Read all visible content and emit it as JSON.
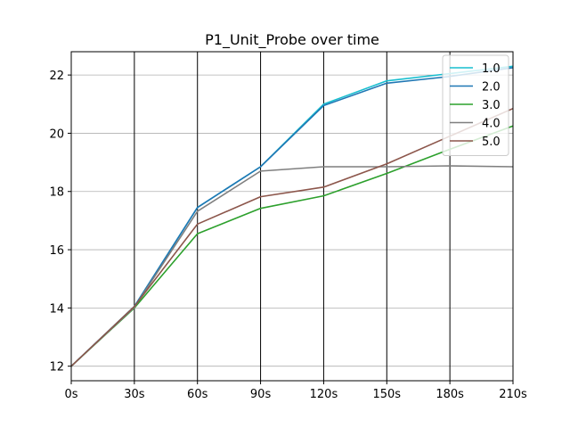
{
  "chart_data": {
    "type": "line",
    "title": "P1_Unit_Probe over time",
    "xlabel": "",
    "ylabel": "",
    "x": [
      0,
      30,
      60,
      90,
      120,
      150,
      180,
      210
    ],
    "x_tick_labels": [
      "0s",
      "30s",
      "60s",
      "90s",
      "120s",
      "150s",
      "180s",
      "210s"
    ],
    "xlim": [
      0,
      210
    ],
    "ylim": [
      11.5,
      22.8
    ],
    "y_ticks": [
      12,
      14,
      16,
      18,
      20,
      22
    ],
    "y_tick_labels": [
      "12",
      "14",
      "16",
      "18",
      "20",
      "22"
    ],
    "grid": "horizontal gridlines gray; vertical lines black at each x tick",
    "legend_position": "top-right",
    "series": [
      {
        "name": "1.0",
        "color": "#17becf",
        "values": [
          12.0,
          14.05,
          17.45,
          18.85,
          21.0,
          21.8,
          22.05,
          22.3
        ]
      },
      {
        "name": "2.0",
        "color": "#1f77b4",
        "values": [
          12.0,
          14.05,
          17.45,
          18.85,
          20.95,
          21.72,
          21.95,
          22.25
        ]
      },
      {
        "name": "3.0",
        "color": "#2ca02c",
        "values": [
          12.0,
          14.0,
          16.55,
          17.42,
          17.85,
          18.62,
          19.45,
          20.25
        ]
      },
      {
        "name": "4.0",
        "color": "#7f7f7f",
        "values": [
          12.0,
          14.02,
          17.32,
          18.7,
          18.85,
          18.85,
          18.88,
          18.85
        ]
      },
      {
        "name": "5.0",
        "color": "#8c564b",
        "values": [
          12.0,
          14.05,
          16.88,
          17.82,
          18.15,
          18.95,
          19.9,
          20.85
        ]
      }
    ]
  }
}
